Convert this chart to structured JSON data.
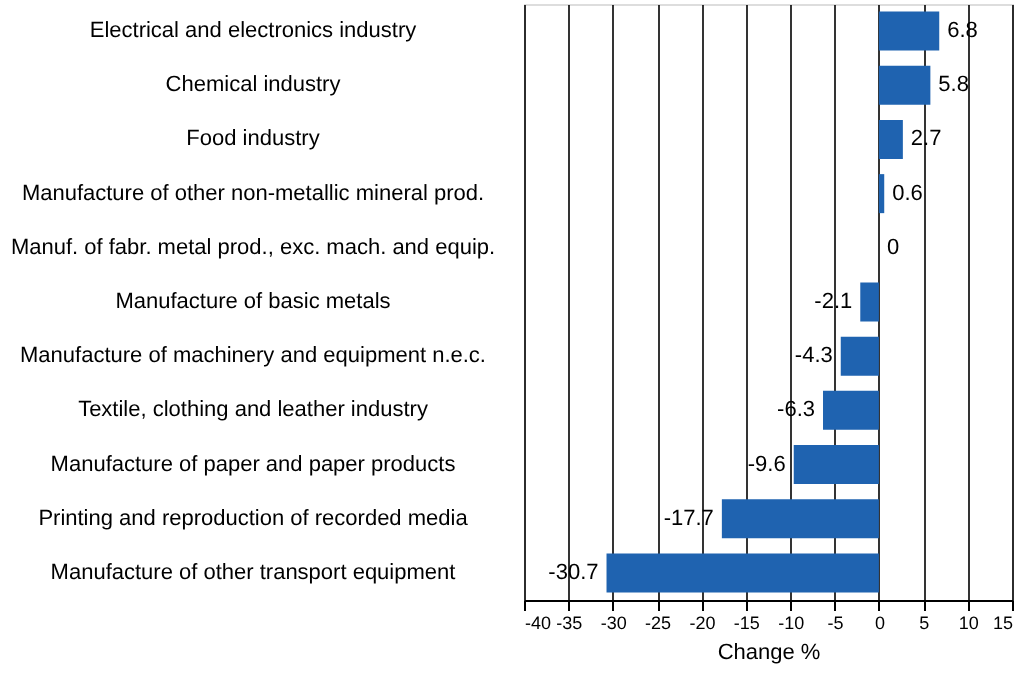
{
  "chart_data": {
    "type": "bar",
    "orientation": "horizontal",
    "xlabel": "Change %",
    "categories": [
      "Electrical and electronics industry",
      "Chemical industry",
      "Food industry",
      "Manufacture of other non-metallic mineral prod.",
      "Manuf. of fabr. metal prod., exc. mach. and equip.",
      "Manufacture of basic metals",
      "Manufacture of machinery and equipment n.e.c.",
      "Textile, clothing and leather industry",
      "Manufacture of paper and paper products",
      "Printing and reproduction of recorded media",
      "Manufacture of other transport equipment"
    ],
    "values": [
      6.8,
      5.8,
      2.7,
      0.6,
      0,
      -2.1,
      -4.3,
      -6.3,
      -9.6,
      -17.7,
      -30.7
    ],
    "color": "#1f63b0",
    "xlim": [
      -40,
      15
    ],
    "xticks": [
      -40,
      -35,
      -30,
      -25,
      -20,
      -15,
      -10,
      -5,
      0,
      5,
      10,
      15
    ],
    "grid": "x",
    "data_labels": true
  }
}
